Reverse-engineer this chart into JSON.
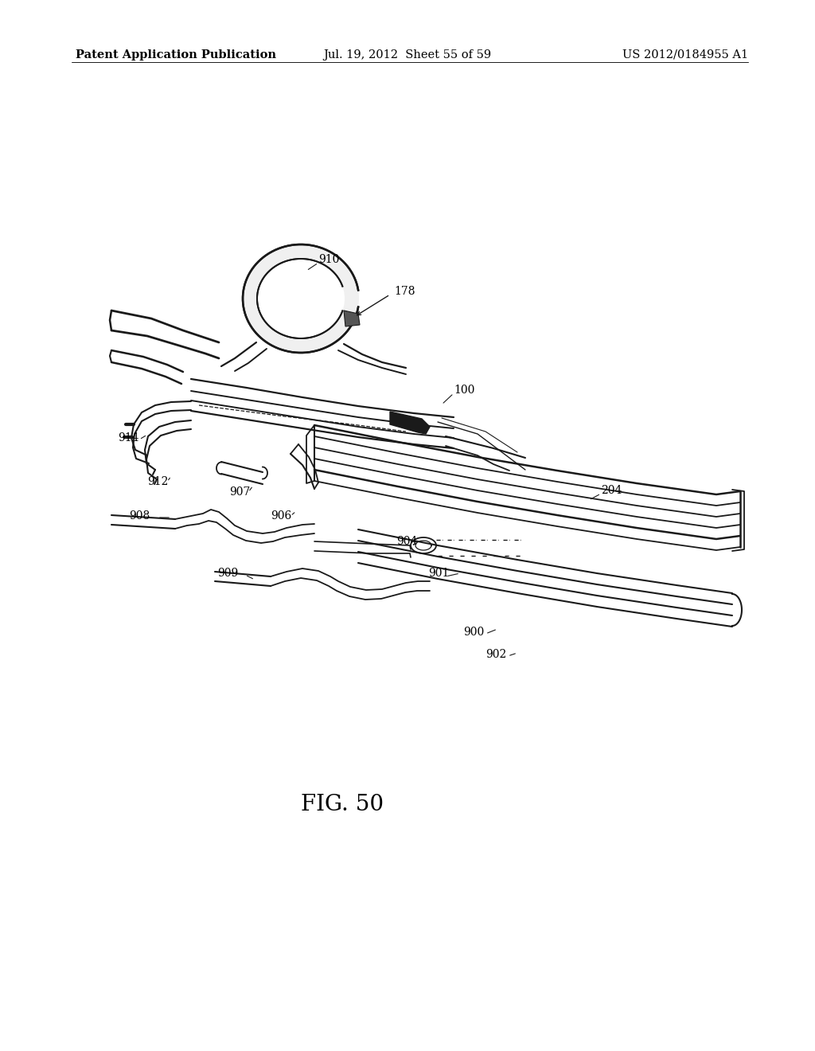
{
  "bg_color": "#ffffff",
  "header_left": "Patent Application Publication",
  "header_mid": "Jul. 19, 2012  Sheet 55 of 59",
  "header_right": "US 2012/0184955 A1",
  "figure_label": "FIG. 50",
  "line_color": "#1a1a1a",
  "line_width": 1.4,
  "fig_label_fontsize": 20,
  "header_fontsize": 10.5,
  "label_fontsize": 10
}
